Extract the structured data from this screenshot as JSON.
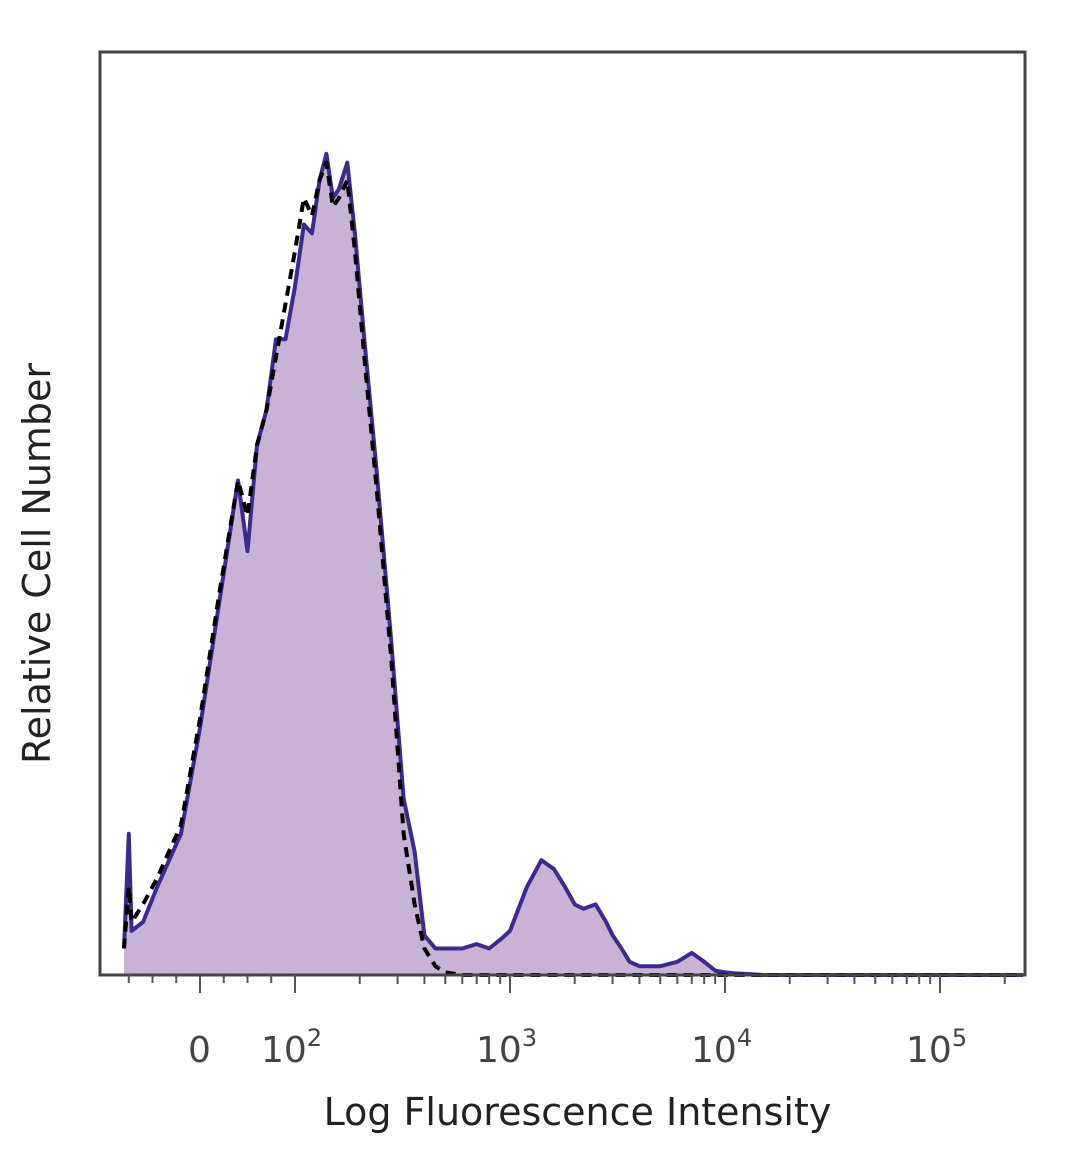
{
  "chart_data": {
    "type": "area",
    "title": "",
    "xlabel": "Log Fluorescence Intensity",
    "ylabel": "Relative Cell Number",
    "x_scale": "biexponential (log above 10^2)",
    "xlim": [
      -80,
      250000
    ],
    "ylim": [
      0,
      100
    ],
    "grid": false,
    "legend": "none",
    "x_ticks": [
      {
        "value": 0,
        "base": "0",
        "exp": ""
      },
      {
        "value": 100,
        "base": "10",
        "exp": "2"
      },
      {
        "value": 1000,
        "base": "10",
        "exp": "3"
      },
      {
        "value": 10000,
        "base": "10",
        "exp": "4"
      },
      {
        "value": 100000,
        "base": "10",
        "exp": "5"
      }
    ],
    "colors": {
      "stained_fill": "#c8b3d6",
      "stained_line": "#3d2a8f",
      "control_line": "#000000",
      "frame": "#444444"
    },
    "series": [
      {
        "style": "filled-solid",
        "x": [
          -80,
          -75,
          -72,
          -60,
          -45,
          -20,
          0,
          20,
          40,
          50,
          60,
          70,
          80,
          90,
          100,
          110,
          120,
          130,
          140,
          150,
          160,
          175,
          190,
          210,
          240,
          280,
          320,
          360,
          400,
          450,
          500,
          600,
          700,
          800,
          900,
          1000,
          1200,
          1400,
          1600,
          1800,
          2000,
          2200,
          2500,
          2800,
          3000,
          3300,
          3600,
          4000,
          5000,
          6000,
          7000,
          8000,
          9000,
          10000,
          11000,
          13000,
          15000,
          20000,
          50000,
          100000,
          250000
        ],
        "y": [
          3,
          16,
          5,
          6,
          10,
          16,
          28,
          42,
          56,
          48,
          60,
          64,
          72,
          72,
          78,
          85,
          84,
          90,
          93,
          88,
          89,
          92,
          84,
          72,
          57,
          38,
          20,
          14,
          4.5,
          3,
          3,
          3,
          3.5,
          3,
          4,
          5,
          10,
          13,
          12,
          10,
          8,
          7.5,
          8,
          6,
          4.5,
          3,
          1.5,
          1,
          1,
          1.5,
          2.5,
          1.5,
          0.5,
          0.3,
          0.2,
          0.1,
          0,
          0,
          0,
          0,
          0
        ]
      },
      {
        "style": "dashed",
        "x": [
          -80,
          -75,
          -72,
          -60,
          -45,
          -20,
          0,
          20,
          40,
          50,
          60,
          70,
          80,
          90,
          100,
          110,
          120,
          130,
          140,
          150,
          160,
          175,
          190,
          210,
          240,
          280,
          320,
          360,
          400,
          450,
          500,
          600,
          1000,
          10000,
          250000
        ],
        "y": [
          3,
          10,
          6,
          8,
          11,
          17,
          29,
          43,
          56,
          52,
          60,
          64,
          70,
          76,
          82,
          88,
          86,
          90,
          92,
          87,
          88,
          90,
          82,
          70,
          55,
          36,
          16,
          8,
          3,
          1,
          0.3,
          0,
          0,
          0,
          0
        ]
      }
    ]
  }
}
